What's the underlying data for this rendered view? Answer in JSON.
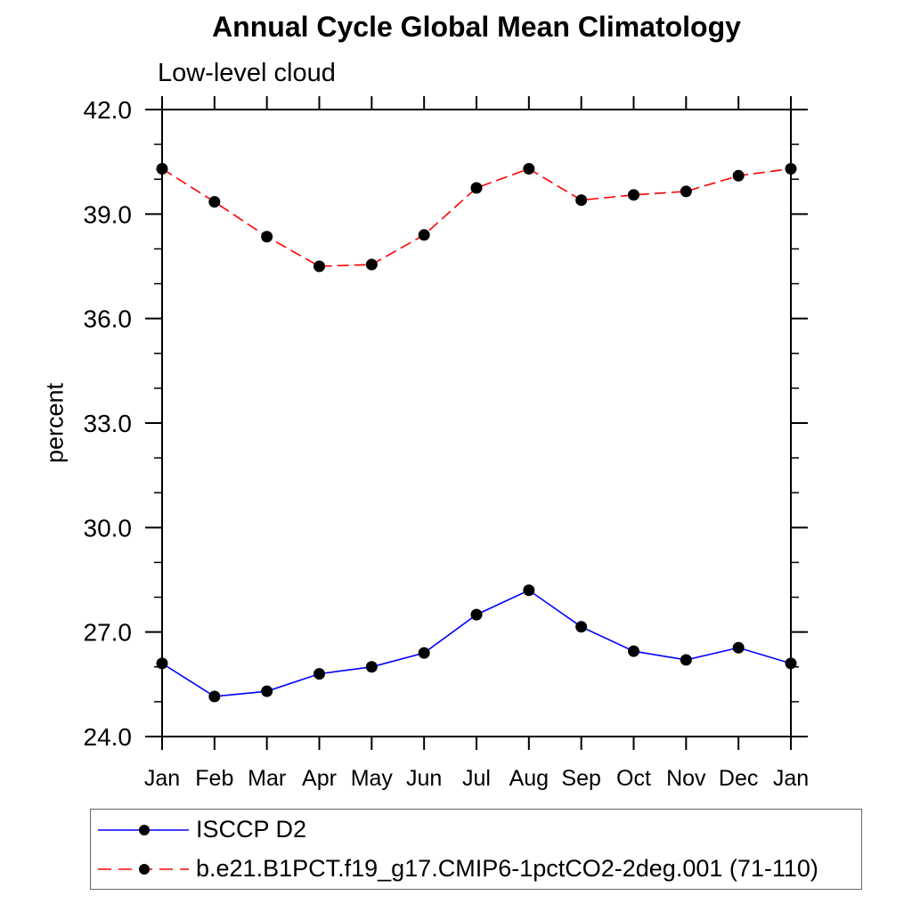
{
  "chart_data": {
    "type": "line",
    "title": "Annual Cycle Global Mean Climatology",
    "subtitle": "Low-level cloud",
    "ylabel": "percent",
    "xlabel": "",
    "categories": [
      "Jan",
      "Feb",
      "Mar",
      "Apr",
      "May",
      "Jun",
      "Jul",
      "Aug",
      "Sep",
      "Oct",
      "Nov",
      "Dec",
      "Jan"
    ],
    "ylim": [
      24.0,
      42.0
    ],
    "ytick_major_step": 3.0,
    "ytick_minor_step": 1.0,
    "ytick_labels": [
      "24.0",
      "27.0",
      "30.0",
      "33.0",
      "36.0",
      "39.0",
      "42.0"
    ],
    "grid": false,
    "legend_position": "bottom-left-box",
    "marker_color": "#000000",
    "axis_color": "#000000",
    "series": [
      {
        "name": "ISCCP D2",
        "color": "#0000ff",
        "style": "solid",
        "marker": "circle",
        "values": [
          26.1,
          25.15,
          25.3,
          25.8,
          26.0,
          26.4,
          27.5,
          28.2,
          27.15,
          26.45,
          26.2,
          26.55,
          26.1
        ]
      },
      {
        "name": "b.e21.B1PCT.f19_g17.CMIP6-1pctCO2-2deg.001 (71-110)",
        "color": "#ff0000",
        "style": "dashed",
        "marker": "circle",
        "values": [
          40.3,
          39.35,
          38.35,
          37.5,
          37.55,
          38.4,
          39.75,
          40.3,
          39.4,
          39.55,
          39.65,
          40.1,
          40.3
        ]
      }
    ]
  }
}
